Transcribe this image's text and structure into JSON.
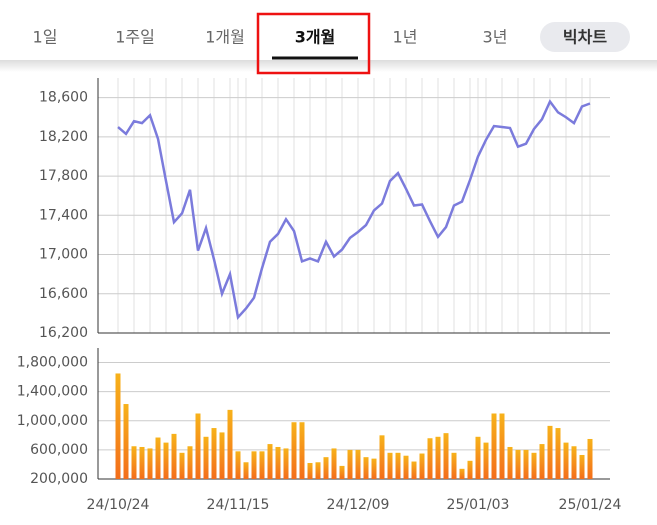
{
  "tabs": [
    "1일",
    "1주일",
    "1개월",
    "3개월",
    "1년",
    "3년",
    "빅차트"
  ],
  "selected_tab": 3,
  "chart_data": [
    {
      "type": "line",
      "color": "#7b7bdc",
      "grid": true,
      "categories": [
        "24/10/24",
        null,
        null,
        null,
        null,
        null,
        null,
        null,
        null,
        null,
        null,
        null,
        null,
        null,
        null,
        "24/11/15",
        null,
        null,
        null,
        null,
        null,
        null,
        null,
        null,
        null,
        null,
        null,
        null,
        null,
        null,
        "24/12/09",
        null,
        null,
        null,
        null,
        null,
        null,
        null,
        null,
        null,
        null,
        null,
        null,
        null,
        null,
        "25/01/03",
        null,
        null,
        null,
        null,
        null,
        null,
        null,
        null,
        null,
        null,
        null,
        null,
        null,
        "25/01/24"
      ],
      "values": [
        18300,
        18230,
        18360,
        18340,
        18420,
        18180,
        17750,
        17330,
        17420,
        17660,
        17040,
        17270,
        16950,
        16600,
        16800,
        16360,
        16450,
        16560,
        16860,
        17130,
        17210,
        17360,
        17240,
        16930,
        16960,
        16930,
        17130,
        16980,
        17050,
        17170,
        17230,
        17300,
        17450,
        17520,
        17750,
        17830,
        17670,
        17500,
        17510,
        17340,
        17180,
        17280,
        17500,
        17540,
        17760,
        18000,
        18170,
        18310,
        18300,
        18290,
        18100,
        18130,
        18280,
        18380,
        18560,
        18450,
        18400,
        18340,
        18510,
        18540
      ],
      "ylim": [
        16200,
        18800
      ],
      "yticks": [
        {
          "value": 16200,
          "label": "16,200"
        },
        {
          "value": 16600,
          "label": "16,600"
        },
        {
          "value": 17000,
          "label": "17,000"
        },
        {
          "value": 17400,
          "label": "17,400"
        },
        {
          "value": 17800,
          "label": "17,800"
        },
        {
          "value": 18200,
          "label": "18,200"
        },
        {
          "value": 18600,
          "label": "18,600"
        }
      ]
    },
    {
      "type": "bar",
      "color": "#f7a11a",
      "grid": true,
      "values": [
        1650000,
        1230000,
        650000,
        640000,
        620000,
        770000,
        700000,
        820000,
        560000,
        650000,
        1100000,
        780000,
        900000,
        840000,
        1150000,
        580000,
        430000,
        580000,
        580000,
        680000,
        640000,
        620000,
        980000,
        980000,
        420000,
        430000,
        500000,
        620000,
        380000,
        600000,
        600000,
        500000,
        480000,
        800000,
        560000,
        560000,
        520000,
        440000,
        550000,
        760000,
        780000,
        830000,
        560000,
        340000,
        450000,
        780000,
        700000,
        1100000,
        1100000,
        640000,
        600000,
        600000,
        560000,
        680000,
        930000,
        900000,
        700000,
        650000,
        530000,
        750000
      ],
      "ylim": [
        200000,
        2000000
      ],
      "yticks": [
        {
          "value": 200000,
          "label": "200,000"
        },
        {
          "value": 600000,
          "label": "600,000"
        },
        {
          "value": 1000000,
          "label": "1,000,000"
        },
        {
          "value": 1400000,
          "label": "1,400,000"
        },
        {
          "value": 1800000,
          "label": "1,800,000"
        }
      ]
    }
  ]
}
